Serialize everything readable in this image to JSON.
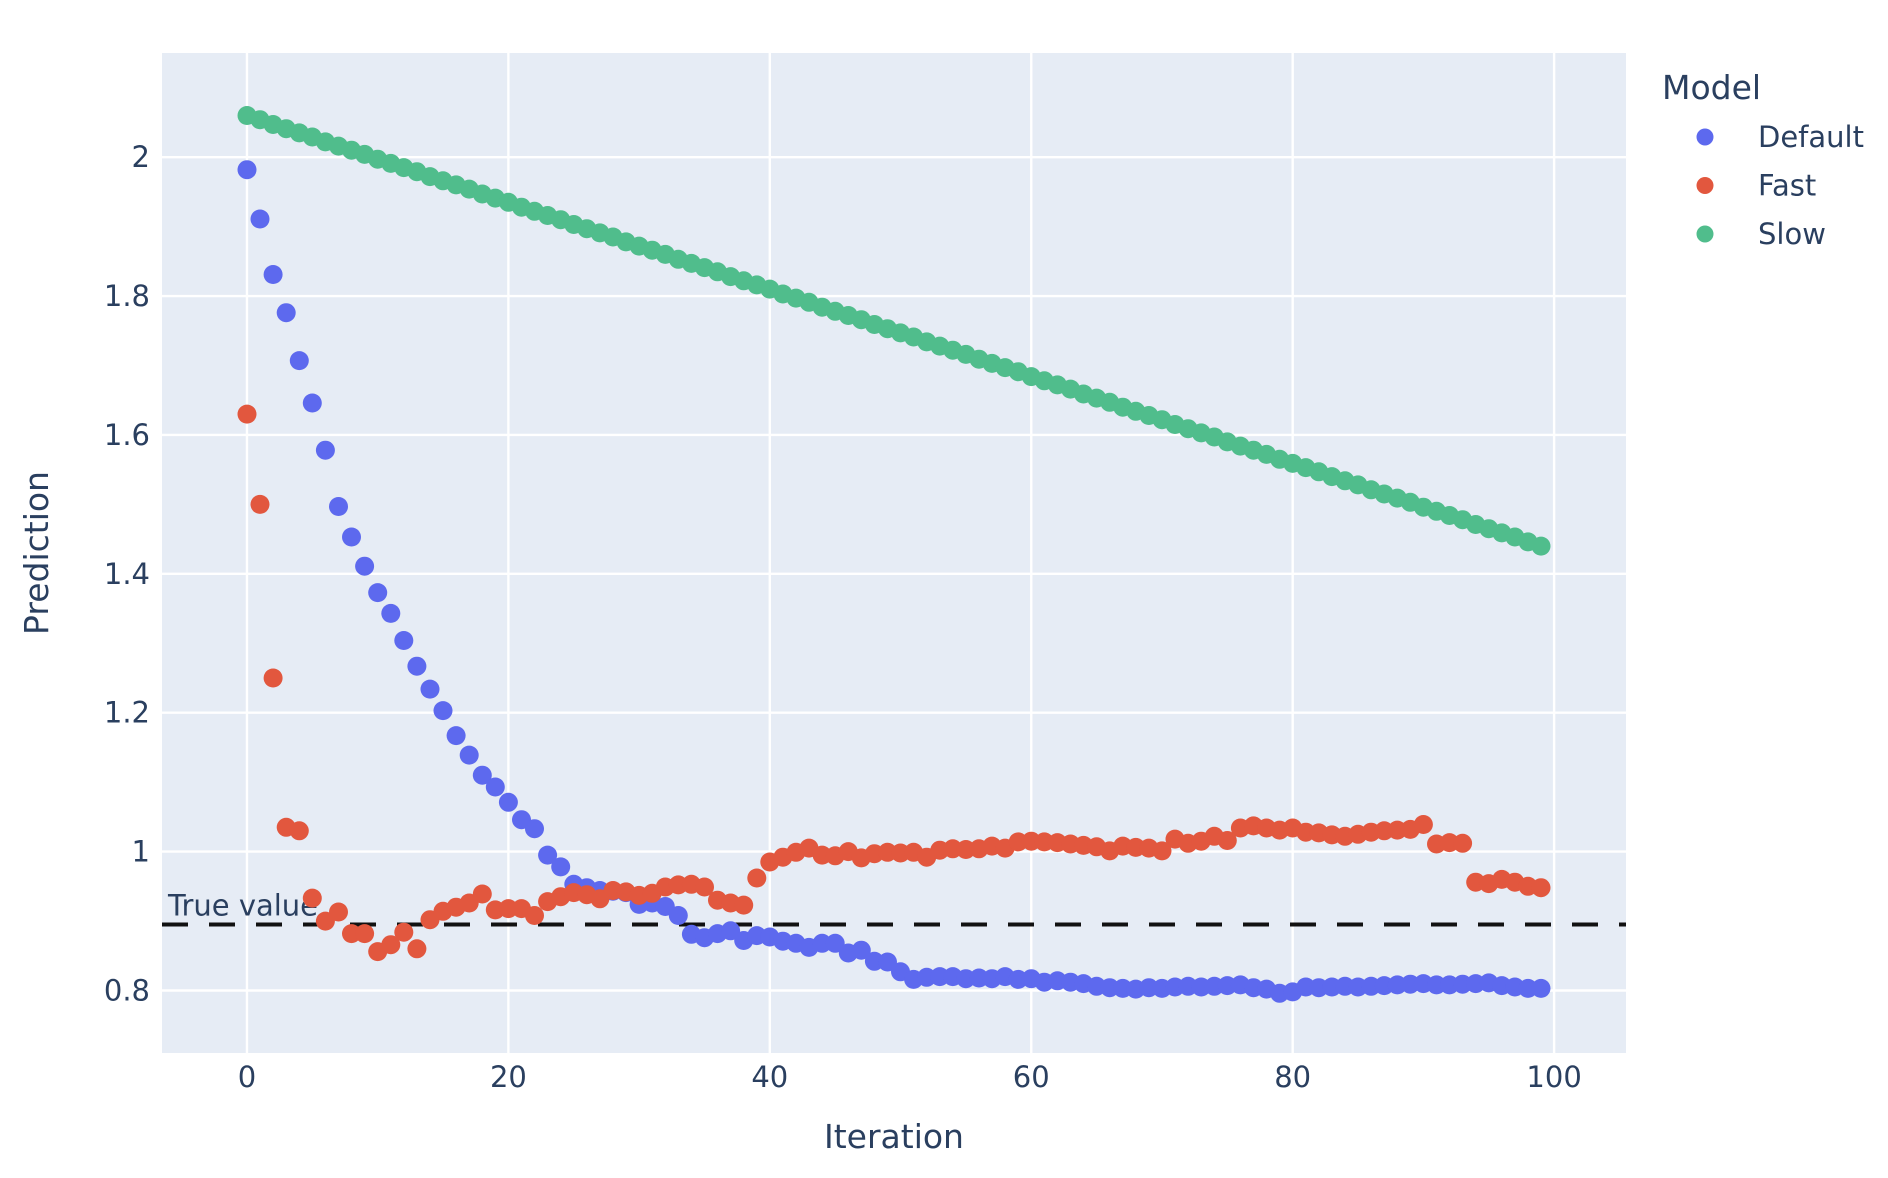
{
  "chart_data": {
    "type": "scatter",
    "title": "",
    "xlabel": "Iteration",
    "ylabel": "Prediction",
    "legend_title": "Model",
    "legend_position": "right",
    "grid": true,
    "plot_bg_color": "#E6ECF5",
    "grid_color": "#FFFFFF",
    "text_color": "#2A3F5F",
    "xlim": [
      -6.5,
      105.5
    ],
    "ylim": [
      0.71,
      2.15
    ],
    "x_ticks": [
      0,
      20,
      40,
      60,
      80,
      100
    ],
    "x_tick_labels": [
      "0",
      "20",
      "40",
      "60",
      "80",
      "100"
    ],
    "y_ticks": [
      0.8,
      1.0,
      1.2,
      1.4,
      1.6,
      1.8,
      2.0
    ],
    "y_tick_labels": [
      "0.8",
      "1",
      "1.2",
      "1.4",
      "1.6",
      "1.8",
      "2"
    ],
    "annotation": {
      "text": "True value",
      "y": 0.895,
      "line_style": "dashed",
      "line_color": "#111111"
    },
    "x": [
      0,
      1,
      2,
      3,
      4,
      5,
      6,
      7,
      8,
      9,
      10,
      11,
      12,
      13,
      14,
      15,
      16,
      17,
      18,
      19,
      20,
      21,
      22,
      23,
      24,
      25,
      26,
      27,
      28,
      29,
      30,
      31,
      32,
      33,
      34,
      35,
      36,
      37,
      38,
      39,
      40,
      41,
      42,
      43,
      44,
      45,
      46,
      47,
      48,
      49,
      50,
      51,
      52,
      53,
      54,
      55,
      56,
      57,
      58,
      59,
      60,
      61,
      62,
      63,
      64,
      65,
      66,
      67,
      68,
      69,
      70,
      71,
      72,
      73,
      74,
      75,
      76,
      77,
      78,
      79,
      80,
      81,
      82,
      83,
      84,
      85,
      86,
      87,
      88,
      89,
      90,
      91,
      92,
      93,
      94,
      95,
      96,
      97,
      98,
      99
    ],
    "series": [
      {
        "name": "Default",
        "color": "#5D69EE",
        "values": [
          1.982,
          1.911,
          1.831,
          1.776,
          1.707,
          1.646,
          1.578,
          1.497,
          1.453,
          1.411,
          1.373,
          1.343,
          1.304,
          1.267,
          1.234,
          1.203,
          1.167,
          1.139,
          1.11,
          1.093,
          1.071,
          1.046,
          1.033,
          0.995,
          0.978,
          0.953,
          0.948,
          0.944,
          0.943,
          0.941,
          0.924,
          0.926,
          0.921,
          0.908,
          0.881,
          0.876,
          0.882,
          0.886,
          0.872,
          0.879,
          0.877,
          0.871,
          0.868,
          0.862,
          0.868,
          0.868,
          0.854,
          0.858,
          0.842,
          0.841,
          0.827,
          0.816,
          0.819,
          0.82,
          0.82,
          0.817,
          0.818,
          0.817,
          0.82,
          0.816,
          0.817,
          0.812,
          0.814,
          0.812,
          0.81,
          0.806,
          0.804,
          0.803,
          0.802,
          0.804,
          0.803,
          0.805,
          0.806,
          0.805,
          0.806,
          0.807,
          0.808,
          0.804,
          0.802,
          0.796,
          0.798,
          0.805,
          0.804,
          0.805,
          0.806,
          0.805,
          0.806,
          0.807,
          0.808,
          0.809,
          0.81,
          0.808,
          0.808,
          0.809,
          0.81,
          0.811,
          0.807,
          0.805,
          0.803,
          0.803
        ]
      },
      {
        "name": "Fast",
        "color": "#E2573E",
        "values": [
          1.63,
          1.5,
          1.25,
          1.035,
          1.03,
          0.933,
          0.9,
          0.913,
          0.882,
          0.882,
          0.856,
          0.866,
          0.884,
          0.86,
          0.902,
          0.914,
          0.92,
          0.926,
          0.939,
          0.916,
          0.918,
          0.918,
          0.908,
          0.928,
          0.935,
          0.941,
          0.938,
          0.932,
          0.944,
          0.942,
          0.937,
          0.94,
          0.949,
          0.952,
          0.953,
          0.949,
          0.93,
          0.926,
          0.923,
          0.962,
          0.985,
          0.992,
          0.999,
          1.005,
          0.995,
          0.994,
          1.0,
          0.991,
          0.997,
          0.999,
          0.998,
          0.999,
          0.992,
          1.002,
          1.004,
          1.003,
          1.004,
          1.008,
          1.005,
          1.014,
          1.015,
          1.014,
          1.013,
          1.011,
          1.009,
          1.007,
          1.001,
          1.008,
          1.006,
          1.005,
          1.001,
          1.018,
          1.012,
          1.015,
          1.022,
          1.016,
          1.034,
          1.037,
          1.034,
          1.031,
          1.034,
          1.028,
          1.027,
          1.024,
          1.022,
          1.025,
          1.028,
          1.03,
          1.031,
          1.032,
          1.039,
          1.011,
          1.013,
          1.012,
          0.956,
          0.954,
          0.96,
          0.956,
          0.95,
          0.948
        ]
      },
      {
        "name": "Slow",
        "color": "#50BD8C",
        "values": [
          2.06,
          2.054,
          2.047,
          2.041,
          2.035,
          2.029,
          2.022,
          2.016,
          2.01,
          2.004,
          1.997,
          1.991,
          1.985,
          1.979,
          1.972,
          1.966,
          1.96,
          1.954,
          1.947,
          1.941,
          1.935,
          1.928,
          1.922,
          1.916,
          1.91,
          1.903,
          1.897,
          1.891,
          1.885,
          1.878,
          1.872,
          1.866,
          1.86,
          1.853,
          1.847,
          1.841,
          1.835,
          1.828,
          1.822,
          1.816,
          1.81,
          1.803,
          1.797,
          1.791,
          1.784,
          1.778,
          1.772,
          1.766,
          1.759,
          1.753,
          1.747,
          1.741,
          1.734,
          1.728,
          1.722,
          1.716,
          1.709,
          1.703,
          1.697,
          1.691,
          1.684,
          1.678,
          1.672,
          1.666,
          1.659,
          1.653,
          1.647,
          1.64,
          1.634,
          1.628,
          1.622,
          1.615,
          1.609,
          1.603,
          1.597,
          1.59,
          1.584,
          1.578,
          1.572,
          1.565,
          1.559,
          1.553,
          1.547,
          1.54,
          1.534,
          1.528,
          1.521,
          1.515,
          1.509,
          1.503,
          1.496,
          1.49,
          1.484,
          1.478,
          1.471,
          1.465,
          1.459,
          1.453,
          1.446,
          1.44
        ]
      }
    ]
  }
}
